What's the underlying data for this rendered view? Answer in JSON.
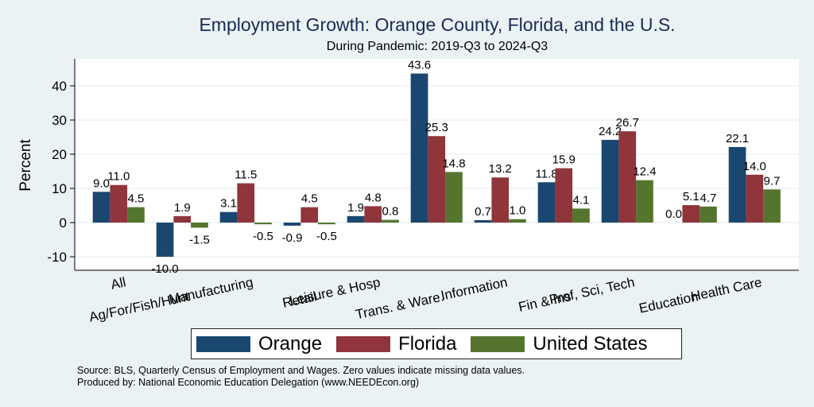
{
  "chart_data": {
    "type": "bar",
    "title": "Employment Growth: Orange County, Florida, and the U.S.",
    "subtitle": "During Pandemic: 2019-Q3 to 2024-Q3",
    "xlabel": "",
    "ylabel": "Percent",
    "ylim": [
      -14,
      49
    ],
    "yticks": [
      -10,
      0,
      10,
      20,
      30,
      40
    ],
    "grid": true,
    "legend_position": "bottom",
    "categories": [
      "All",
      "Ag/For/Fish/Hunt",
      "Manufacturing",
      "Retail",
      "Leisure & Hosp",
      "Trans. & Ware.",
      "Information",
      "Fin & Ins",
      "Prof, Sci, Tech",
      "Education",
      "Health Care"
    ],
    "series": [
      {
        "name": "Orange",
        "color": "#1a476f",
        "values": [
          9.0,
          -10.0,
          3.1,
          -0.9,
          1.9,
          43.6,
          0.7,
          11.8,
          24.2,
          0.0,
          22.1
        ]
      },
      {
        "name": "Florida",
        "color": "#90353b",
        "values": [
          11.0,
          1.9,
          11.5,
          4.5,
          4.8,
          25.3,
          13.2,
          15.9,
          26.7,
          5.1,
          14.0
        ]
      },
      {
        "name": "United States",
        "color": "#55752f",
        "values": [
          4.5,
          -1.5,
          -0.5,
          -0.5,
          0.8,
          14.8,
          1.0,
          4.1,
          12.4,
          4.7,
          9.7
        ]
      }
    ]
  },
  "notes": {
    "source": "Source: BLS, Quarterly Census of Employment and Wages. Zero values indicate missing data values.",
    "produced": "Produced by: National Economic Education Delegation (www.NEEDEcon.org)"
  }
}
